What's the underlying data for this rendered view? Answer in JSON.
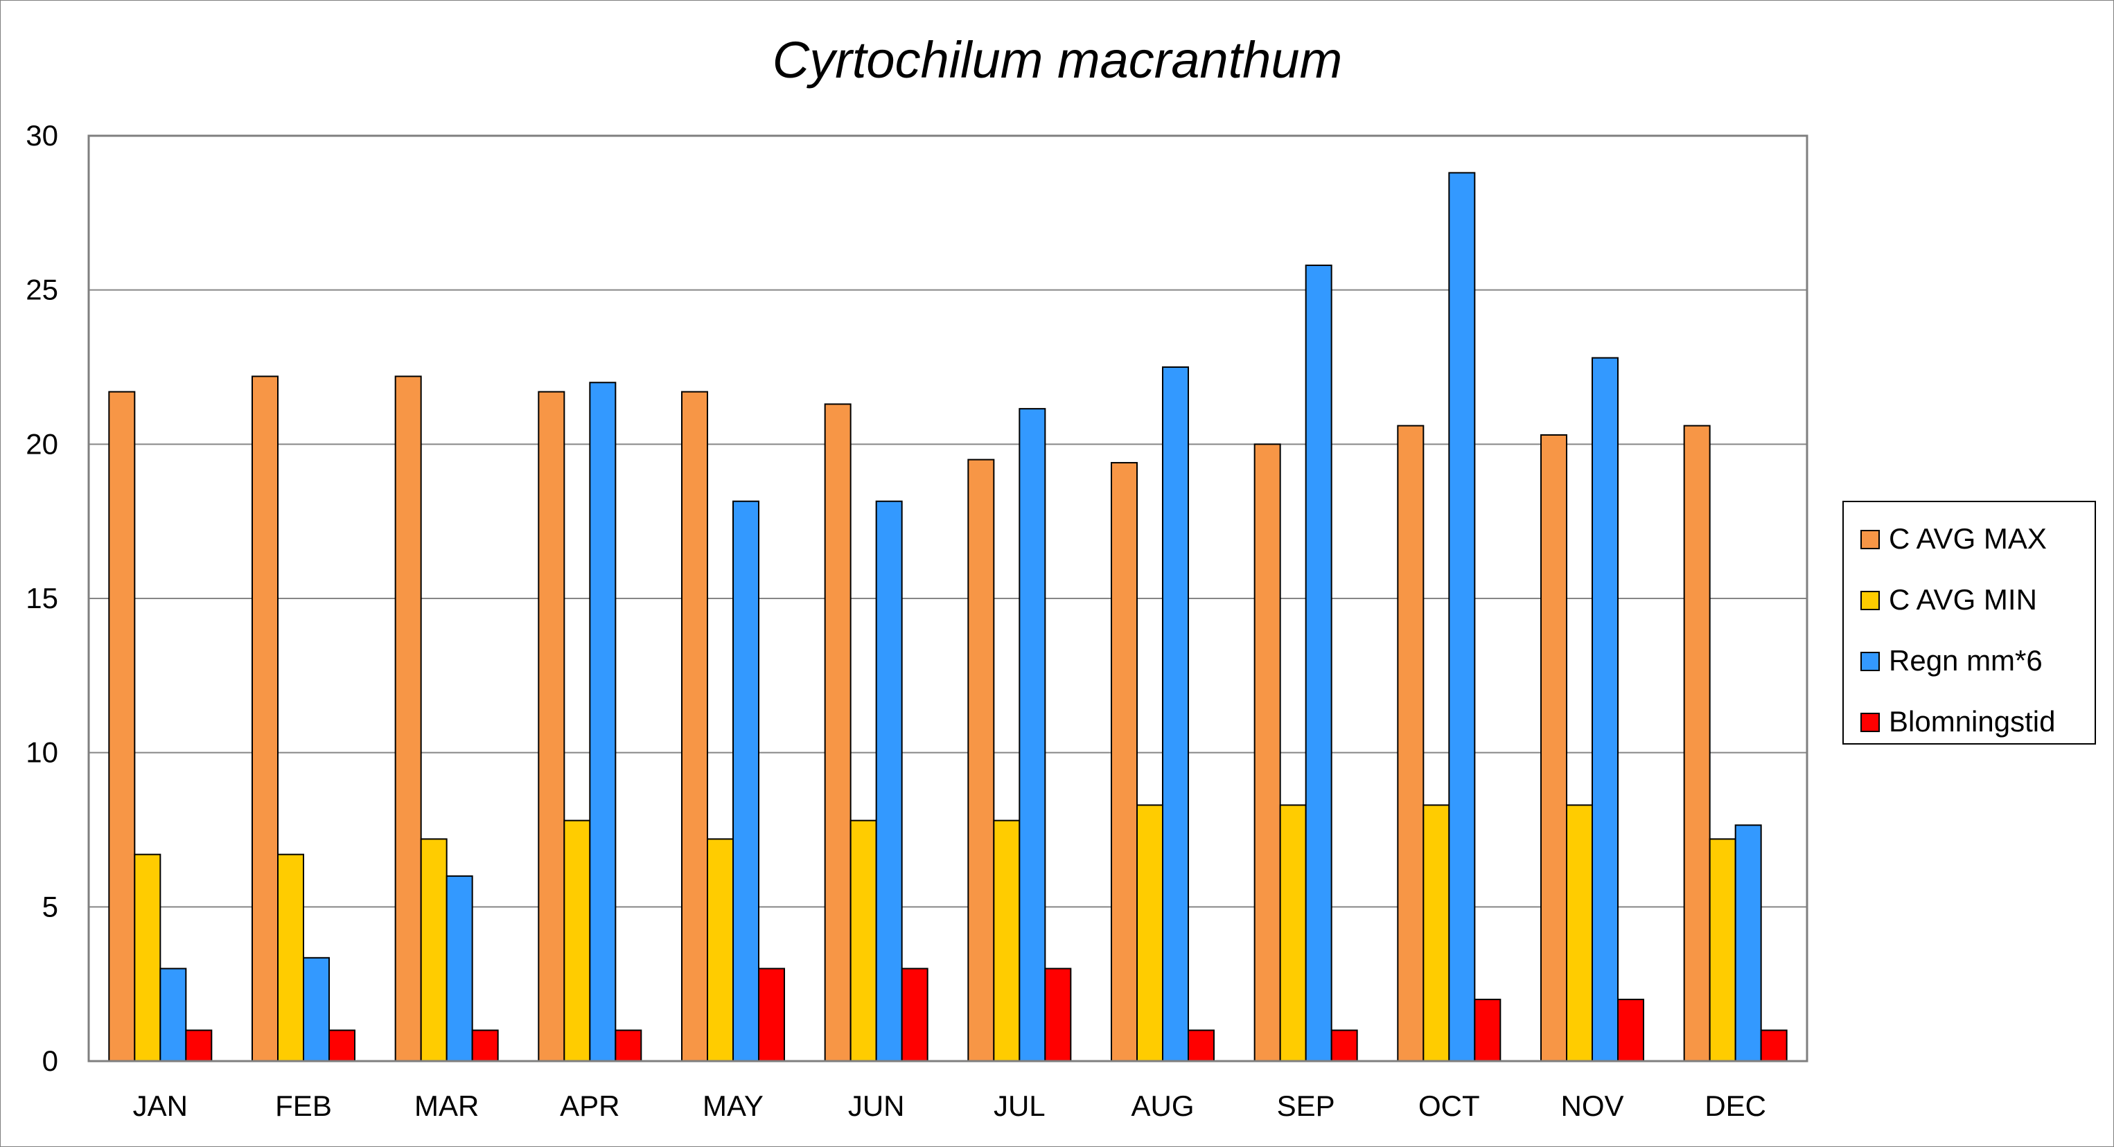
{
  "chart_data": {
    "type": "bar",
    "title": "Cyrtochilum macranthum",
    "xlabel": "",
    "ylabel": "",
    "ylim": [
      0,
      30
    ],
    "yticks": [
      0,
      5,
      10,
      15,
      20,
      25,
      30
    ],
    "grid": true,
    "legend_position": "right",
    "categories": [
      "JAN",
      "FEB",
      "MAR",
      "APR",
      "MAY",
      "JUN",
      "JUL",
      "AUG",
      "SEP",
      "OCT",
      "NOV",
      "DEC"
    ],
    "series": [
      {
        "name": "C AVG MAX",
        "color": "#F79646",
        "values": [
          21.7,
          22.2,
          22.2,
          21.7,
          21.7,
          21.3,
          19.5,
          19.4,
          20.0,
          20.6,
          20.3,
          20.6
        ]
      },
      {
        "name": "C AVG MIN",
        "color": "#FFCC00",
        "values": [
          6.7,
          6.7,
          7.2,
          7.8,
          7.2,
          7.8,
          7.8,
          8.3,
          8.3,
          8.3,
          8.3,
          7.2
        ]
      },
      {
        "name": "Regn mm*6",
        "color": "#3399FF",
        "values": [
          3.0,
          3.35,
          6.0,
          22.0,
          18.15,
          18.15,
          21.15,
          22.5,
          25.8,
          28.8,
          22.8,
          7.65
        ]
      },
      {
        "name": "Blomningstid",
        "color": "#FF0000",
        "values": [
          1,
          1,
          1,
          1,
          3,
          3,
          3,
          1,
          1,
          2,
          2,
          1
        ]
      }
    ]
  }
}
